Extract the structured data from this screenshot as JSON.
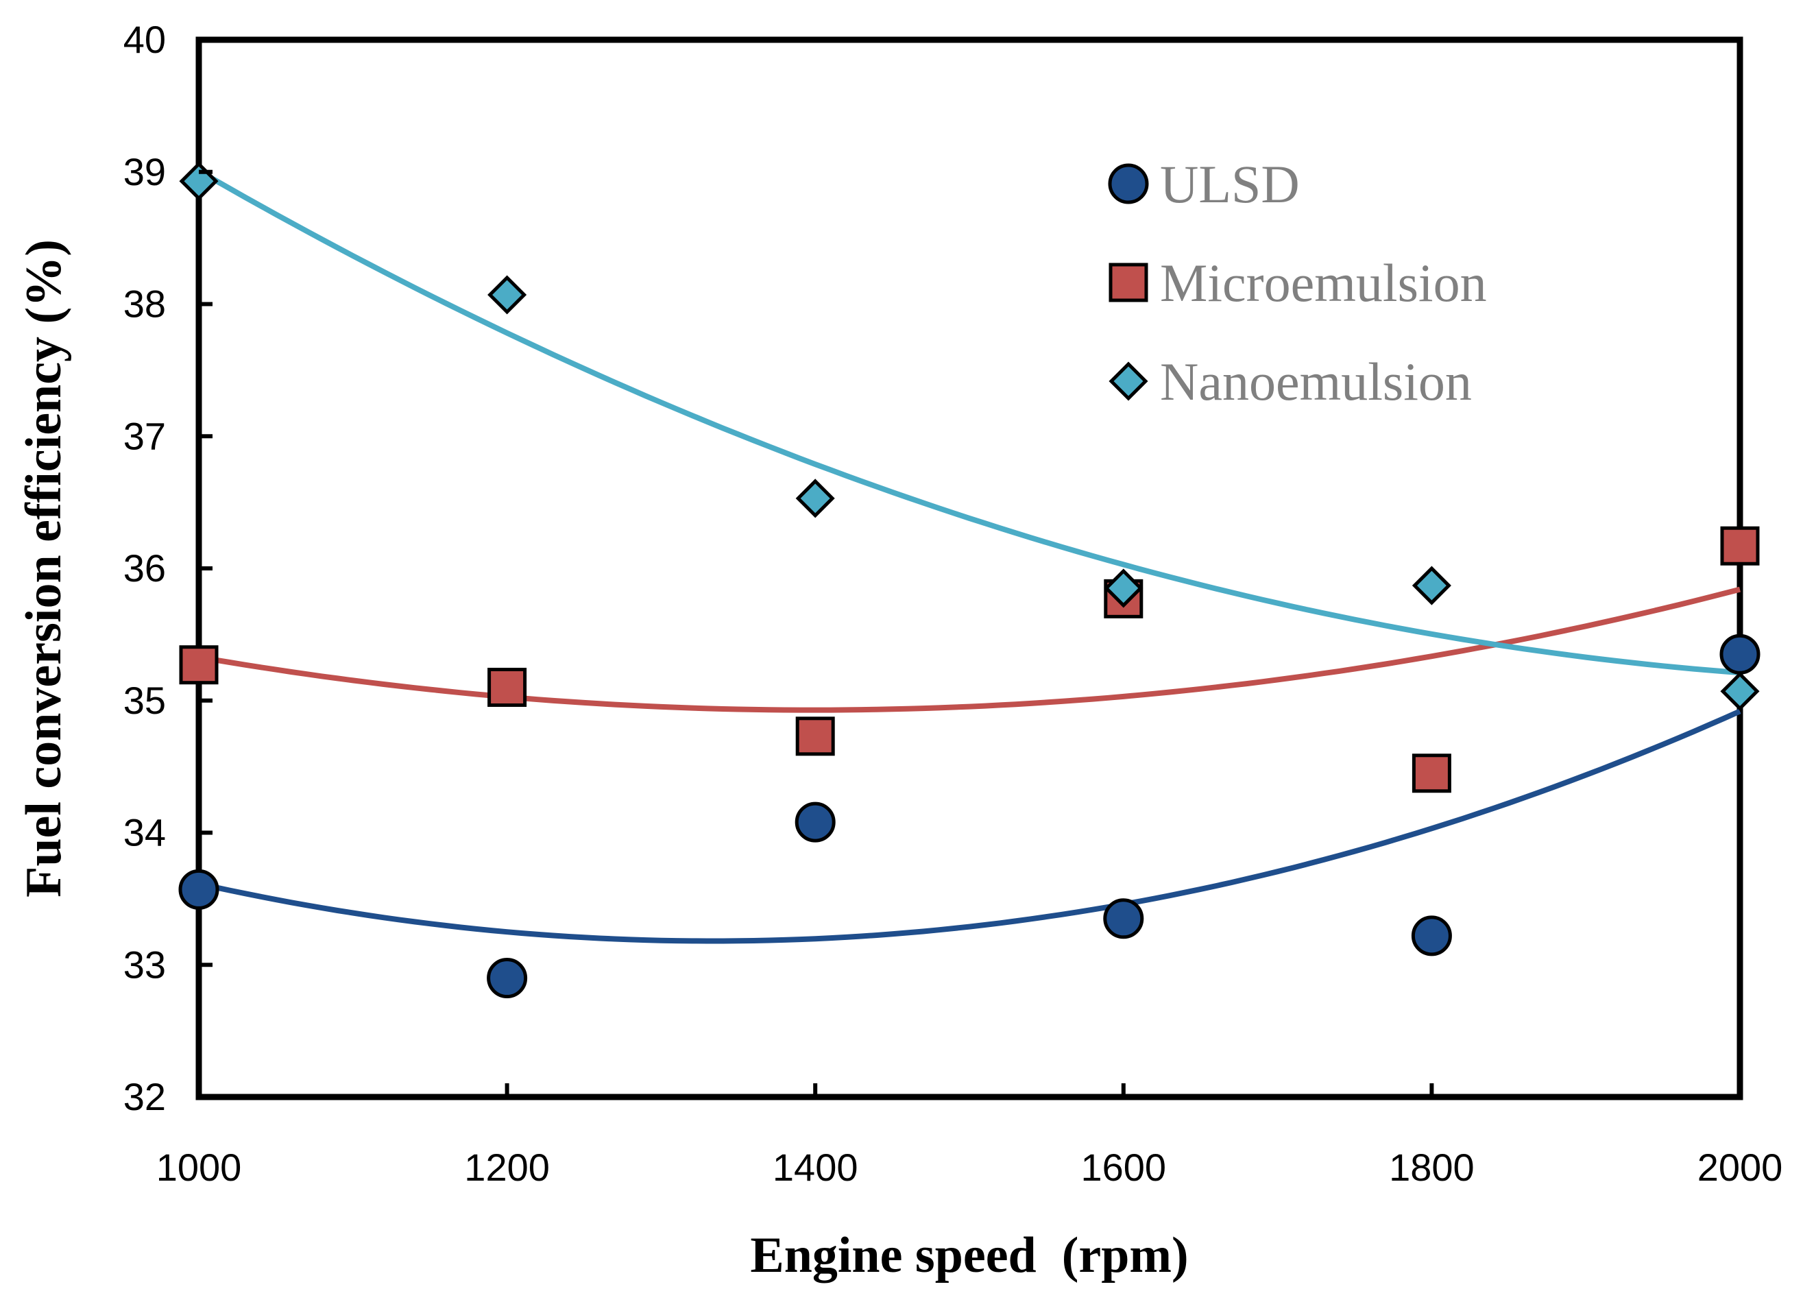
{
  "chart_data": {
    "type": "scatter",
    "title": "",
    "xlabel": "Engine speed  (rpm)",
    "ylabel": "Fuel conversion efficiency (%)",
    "xlim": [
      1000,
      2000
    ],
    "ylim": [
      32,
      40
    ],
    "xticks": [
      1000,
      1200,
      1400,
      1600,
      1800,
      2000
    ],
    "yticks": [
      32,
      33,
      34,
      35,
      36,
      37,
      38,
      39,
      40
    ],
    "grid": false,
    "legend_position": "top-right",
    "x": [
      1000,
      1200,
      1400,
      1600,
      1800,
      2000
    ],
    "series": [
      {
        "name": "ULSD",
        "marker": "circle",
        "color": "#1f4e8c",
        "values": [
          33.57,
          32.9,
          34.08,
          33.35,
          33.22,
          35.35
        ],
        "trendline": "quadratic"
      },
      {
        "name": "Microemulsion",
        "marker": "square",
        "color": "#c0504d",
        "values": [
          35.27,
          35.1,
          34.73,
          35.77,
          34.45,
          36.17
        ],
        "trendline": "quadratic"
      },
      {
        "name": "Nanoemulsion",
        "marker": "diamond",
        "color": "#4bacc6",
        "values": [
          38.93,
          38.07,
          36.53,
          35.85,
          35.87,
          35.07
        ],
        "trendline": "quadratic"
      }
    ]
  }
}
